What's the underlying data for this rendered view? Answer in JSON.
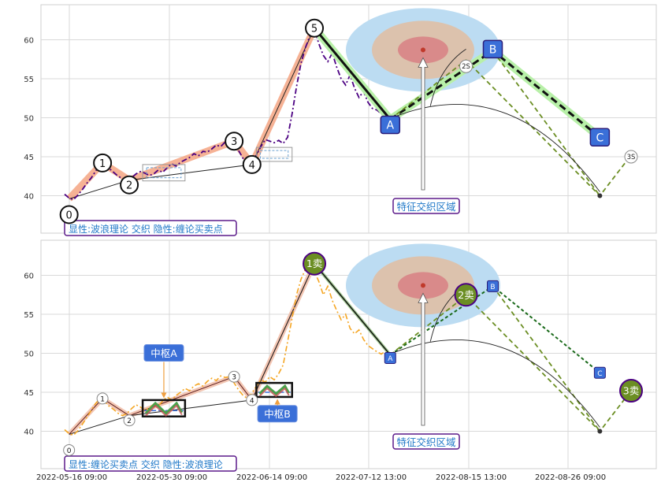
{
  "chart_data": [
    {
      "type": "line",
      "panel": "top",
      "y_ticks": [
        40,
        45,
        50,
        55,
        60
      ],
      "ylim": [
        35.2,
        64.5
      ],
      "grid": true,
      "caption": "显性:波浪理论 交织 隐性:缠论买卖点",
      "zone_label": "特征交织区域",
      "wave_points": [
        {
          "label": "0",
          "x": 1,
          "y": 39.6
        },
        {
          "label": "1",
          "x": 8.5,
          "y": 44.2
        },
        {
          "label": "2",
          "x": 14.5,
          "y": 42.0
        },
        {
          "label": "3",
          "x": 38,
          "y": 47.0
        },
        {
          "label": "4",
          "x": 42,
          "y": 44.0
        },
        {
          "label": "5",
          "x": 56,
          "y": 61.5
        }
      ],
      "abc_points": [
        {
          "label": "A",
          "x": 73,
          "y": 49.8
        },
        {
          "label": "B",
          "x": 96,
          "y": 58.6
        },
        {
          "label": "C",
          "x": 120,
          "y": 47.5
        }
      ],
      "projection_labels": [
        "2S",
        "3S"
      ],
      "price": [
        [
          0,
          40.2
        ],
        [
          1,
          39.7
        ],
        [
          2,
          39.5
        ],
        [
          3,
          40.1
        ],
        [
          4,
          40.8
        ],
        [
          5,
          41.6
        ],
        [
          6,
          42.3
        ],
        [
          7,
          43.2
        ],
        [
          8,
          44.0
        ],
        [
          9,
          44.1
        ],
        [
          10,
          43.5
        ],
        [
          11,
          43.0
        ],
        [
          12,
          42.5
        ],
        [
          13,
          42.2
        ],
        [
          14,
          42.0
        ],
        [
          15,
          42.3
        ],
        [
          16,
          42.8
        ],
        [
          17,
          43.1
        ],
        [
          18,
          42.9
        ],
        [
          19,
          42.6
        ],
        [
          20,
          42.8
        ],
        [
          21,
          43.3
        ],
        [
          22,
          43.0
        ],
        [
          23,
          43.6
        ],
        [
          24,
          44.1
        ],
        [
          25,
          43.8
        ],
        [
          26,
          44.3
        ],
        [
          27,
          44.6
        ],
        [
          28,
          44.9
        ],
        [
          29,
          45.4
        ],
        [
          30,
          45.1
        ],
        [
          31,
          45.7
        ],
        [
          32,
          45.6
        ],
        [
          33,
          46.0
        ],
        [
          34,
          46.5
        ],
        [
          35,
          46.3
        ],
        [
          36,
          46.9
        ],
        [
          37,
          47.0
        ],
        [
          38,
          46.6
        ],
        [
          39,
          45.8
        ],
        [
          40,
          44.8
        ],
        [
          41,
          44.1
        ],
        [
          42,
          44.5
        ],
        [
          43,
          45.2
        ],
        [
          44,
          46.3
        ],
        [
          45,
          47.2
        ],
        [
          46,
          47.0
        ],
        [
          47,
          46.8
        ],
        [
          48,
          47.1
        ],
        [
          49,
          46.7
        ],
        [
          50,
          47.5
        ],
        [
          51,
          50.5
        ],
        [
          52,
          54.0
        ],
        [
          53,
          57.0
        ],
        [
          54,
          59.0
        ],
        [
          55,
          60.5
        ],
        [
          56,
          61.3
        ],
        [
          57,
          59.5
        ],
        [
          58,
          58.0
        ],
        [
          59,
          57.2
        ],
        [
          60,
          58.3
        ],
        [
          61,
          56.5
        ],
        [
          62,
          55.0
        ],
        [
          63,
          54.2
        ],
        [
          64,
          55.5
        ],
        [
          65,
          53.8
        ],
        [
          66,
          52.6
        ],
        [
          67,
          53.4
        ],
        [
          68,
          52.0
        ],
        [
          69,
          51.2
        ],
        [
          70,
          51.0
        ],
        [
          71,
          50.5
        ],
        [
          72,
          50.0
        ],
        [
          73,
          49.8
        ]
      ]
    },
    {
      "type": "line",
      "panel": "bottom",
      "y_ticks": [
        40,
        45,
        50,
        55,
        60
      ],
      "ylim": [
        35.2,
        64.5
      ],
      "grid": true,
      "caption": "显性:缠论买卖点 交织 隐性:波浪理论",
      "zone_label": "特征交织区域",
      "hub_labels": [
        "中枢A",
        "中枢B"
      ],
      "wave_points": [
        {
          "label": "0",
          "x": 1,
          "y": 39.6
        },
        {
          "label": "1",
          "x": 8.5,
          "y": 44.2
        },
        {
          "label": "2",
          "x": 14.5,
          "y": 42.0
        },
        {
          "label": "3",
          "x": 38,
          "y": 47.0
        },
        {
          "label": "4",
          "x": 42,
          "y": 44.0
        }
      ],
      "abc_points": [
        {
          "label": "A",
          "x": 73,
          "y": 49.8
        },
        {
          "label": "B",
          "x": 96,
          "y": 58.6
        },
        {
          "label": "C",
          "x": 120,
          "y": 47.5
        }
      ],
      "sell_points": [
        {
          "label": "1卖",
          "x": 56,
          "y": 61.5
        },
        {
          "label": "2卖",
          "x": 90,
          "y": 57.5
        },
        {
          "label": "3卖",
          "x": 127,
          "y": 45.2
        }
      ],
      "price": [
        [
          0,
          40.2
        ],
        [
          1,
          39.7
        ],
        [
          2,
          39.5
        ],
        [
          3,
          40.1
        ],
        [
          4,
          40.9
        ],
        [
          5,
          41.8
        ],
        [
          6,
          42.7
        ],
        [
          7,
          43.6
        ],
        [
          8,
          44.2
        ],
        [
          9,
          43.8
        ],
        [
          10,
          43.2
        ],
        [
          11,
          42.8
        ],
        [
          12,
          42.3
        ],
        [
          13,
          42.0
        ],
        [
          14,
          42.3
        ],
        [
          15,
          42.9
        ],
        [
          16,
          43.4
        ],
        [
          17,
          43.1
        ],
        [
          18,
          42.7
        ],
        [
          19,
          43.0
        ],
        [
          20,
          43.5
        ],
        [
          21,
          43.2
        ],
        [
          22,
          43.9
        ],
        [
          23,
          44.4
        ],
        [
          24,
          44.0
        ],
        [
          25,
          44.6
        ],
        [
          26,
          45.0
        ],
        [
          27,
          45.5
        ],
        [
          28,
          45.2
        ],
        [
          29,
          45.8
        ],
        [
          30,
          46.1
        ],
        [
          31,
          45.8
        ],
        [
          32,
          46.4
        ],
        [
          33,
          46.8
        ],
        [
          34,
          46.5
        ],
        [
          35,
          47.1
        ],
        [
          36,
          46.9
        ],
        [
          37,
          47.0
        ],
        [
          38,
          46.2
        ],
        [
          39,
          45.3
        ],
        [
          40,
          44.6
        ],
        [
          41,
          44.2
        ],
        [
          42,
          44.9
        ],
        [
          43,
          45.8
        ],
        [
          44,
          46.6
        ],
        [
          45,
          46.3
        ],
        [
          46,
          47.0
        ],
        [
          47,
          46.6
        ],
        [
          48,
          47.4
        ],
        [
          49,
          48.5
        ],
        [
          50,
          51.5
        ],
        [
          51,
          54.5
        ],
        [
          52,
          57.5
        ],
        [
          53,
          59.5
        ],
        [
          54,
          60.8
        ],
        [
          55,
          61.4
        ],
        [
          56,
          60.5
        ],
        [
          57,
          59.2
        ],
        [
          58,
          57.5
        ],
        [
          59,
          58.6
        ],
        [
          60,
          56.8
        ],
        [
          61,
          55.5
        ],
        [
          62,
          54.3
        ],
        [
          63,
          55.0
        ],
        [
          64,
          53.2
        ],
        [
          65,
          52.5
        ],
        [
          66,
          53.0
        ],
        [
          67,
          51.8
        ],
        [
          68,
          51.0
        ],
        [
          69,
          50.6
        ],
        [
          70,
          50.2
        ],
        [
          71,
          49.9
        ],
        [
          72,
          50.3
        ],
        [
          73,
          49.8
        ]
      ]
    }
  ],
  "x_axis_ticks": [
    "2022-05-16 09:00",
    "2022-05-30 09:00",
    "2022-06-14 09:00",
    "2022-07-12 13:00",
    "2022-08-15 13:00",
    "2022-08-26 09:00"
  ],
  "colors": {
    "grid": "#d9d9d9",
    "wave_band": "#f4a582",
    "price_top": "#4b0082",
    "price_bottom": "#f5a623",
    "abc_band": "#b8f0a8",
    "projection": "#6b8e23",
    "label_box": "#3a6fd8",
    "label_box_border": "#2a1d7a",
    "sell_fill": "#6b8e23",
    "caption_text": "#1f78c8",
    "caption_border": "#5b1a8a",
    "zone_outer": "#bcdcf2",
    "zone_mid": "#dcc2ad",
    "zone_inner": "#d98a8a",
    "zone_dot": "#c0392b"
  }
}
